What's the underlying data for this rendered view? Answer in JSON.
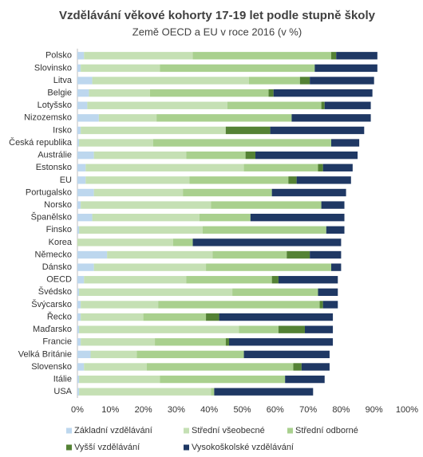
{
  "chart_data": {
    "type": "stacked-barh",
    "title": "Vzdělávání věkové kohorty 17-19 let podle stupně školy",
    "subtitle": "Země OECD a EU v roce 2016 (v %)",
    "categories": [
      "Polsko",
      "Slovinsko",
      "Litva",
      "Belgie",
      "Lotyšsko",
      "Nizozemsko",
      "Irsko",
      "Česká republika",
      "Austrálie",
      "Estonsko",
      "EU",
      "Portugalsko",
      "Norsko",
      "Španělsko",
      "Finsko",
      "Korea",
      "Německo",
      "Dánsko",
      "OECD",
      "Švédsko",
      "Švýcarsko",
      "Řecko",
      "Maďarsko",
      "Francie",
      "Velká Británie",
      "Slovensko",
      "Itálie",
      "USA"
    ],
    "series": [
      {
        "name": "Základní vzdělávání",
        "color": "#bdd7ee",
        "values": [
          2,
          1,
          4.5,
          3.5,
          3,
          6.5,
          1,
          0.5,
          5,
          2.5,
          2.5,
          5,
          1,
          4.5,
          0.5,
          0,
          9,
          5,
          2,
          0.5,
          1,
          1,
          0.5,
          1,
          4,
          2,
          0.5,
          0.5
        ]
      },
      {
        "name": "Střední všeobecné",
        "color": "#c5e0b4",
        "values": [
          33,
          24,
          47.5,
          18.5,
          42.5,
          17.5,
          44,
          22.5,
          28,
          48,
          31.5,
          27,
          39.5,
          32.5,
          37.5,
          29,
          32,
          34,
          31,
          46.5,
          23.5,
          19,
          48.5,
          22.5,
          14,
          19,
          24.5,
          40
        ]
      },
      {
        "name": "Střední odborné",
        "color": "#a9d08e",
        "values": [
          42,
          47,
          15.5,
          36,
          28.5,
          41,
          0,
          54,
          18,
          22.5,
          30,
          27,
          33.5,
          15.5,
          37.5,
          6,
          22.5,
          38,
          26,
          26,
          49,
          19,
          12,
          21.5,
          32.5,
          44.5,
          38,
          1
        ]
      },
      {
        "name": "Vyšší vzdělávání",
        "color": "#548235",
        "values": [
          1.5,
          0,
          3,
          1.5,
          1,
          0,
          13.5,
          0,
          3,
          1.5,
          2.5,
          0,
          0,
          0,
          0,
          0,
          7,
          0,
          2,
          0,
          1,
          4,
          8,
          1,
          0,
          2.5,
          0,
          0
        ]
      },
      {
        "name": "Vysokoškolské vzdělávání",
        "color": "#1f3864",
        "values": [
          12.5,
          19,
          19.5,
          30,
          14,
          24,
          28.5,
          8.5,
          31,
          9,
          16.5,
          22.5,
          7,
          28.5,
          5.5,
          45,
          9.5,
          3,
          18,
          6,
          4.5,
          34.5,
          8.5,
          31.5,
          26,
          8.5,
          12,
          30
        ]
      }
    ],
    "xlim": [
      0,
      100
    ],
    "xticks": [
      {
        "value": 0,
        "label": "0%"
      },
      {
        "value": 10,
        "label": "10%"
      },
      {
        "value": 20,
        "label": "20%"
      },
      {
        "value": 30,
        "label": "30%"
      },
      {
        "value": 40,
        "label": "40%"
      },
      {
        "value": 50,
        "label": "50%"
      },
      {
        "value": 60,
        "label": "60%"
      },
      {
        "value": 70,
        "label": "70%"
      },
      {
        "value": 80,
        "label": "80%"
      },
      {
        "value": 90,
        "label": "90%"
      },
      {
        "value": 100,
        "label": "100%"
      }
    ],
    "grid": false,
    "legend": "bottom"
  }
}
